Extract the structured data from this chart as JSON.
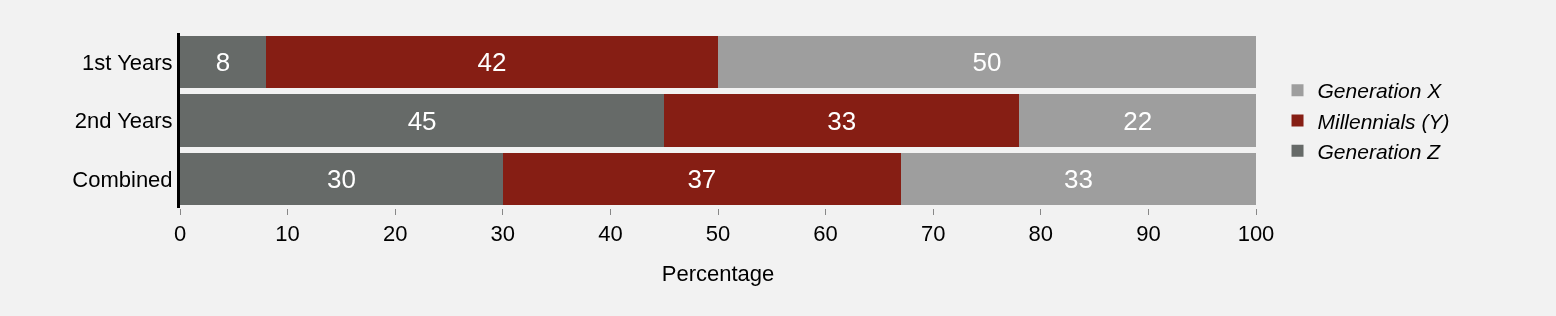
{
  "chart_data": {
    "type": "bar",
    "orientation": "horizontal",
    "stacked": true,
    "xlabel": "Percentage",
    "categories": [
      "1st Years",
      "2nd Years",
      "Combined"
    ],
    "series": [
      {
        "name": "Generation Z",
        "color": "#666a68",
        "values": [
          8,
          45,
          30
        ]
      },
      {
        "name": "Millennials (Y)",
        "color": "#861e14",
        "values": [
          42,
          33,
          37
        ]
      },
      {
        "name": "Generation X",
        "color": "#9e9e9e",
        "values": [
          50,
          22,
          33
        ]
      }
    ],
    "xlim": [
      0,
      100
    ],
    "xticks": [
      0,
      10,
      20,
      30,
      40,
      50,
      60,
      70,
      80,
      90,
      100
    ],
    "data_labels": true,
    "legend": "right",
    "grid": false
  }
}
